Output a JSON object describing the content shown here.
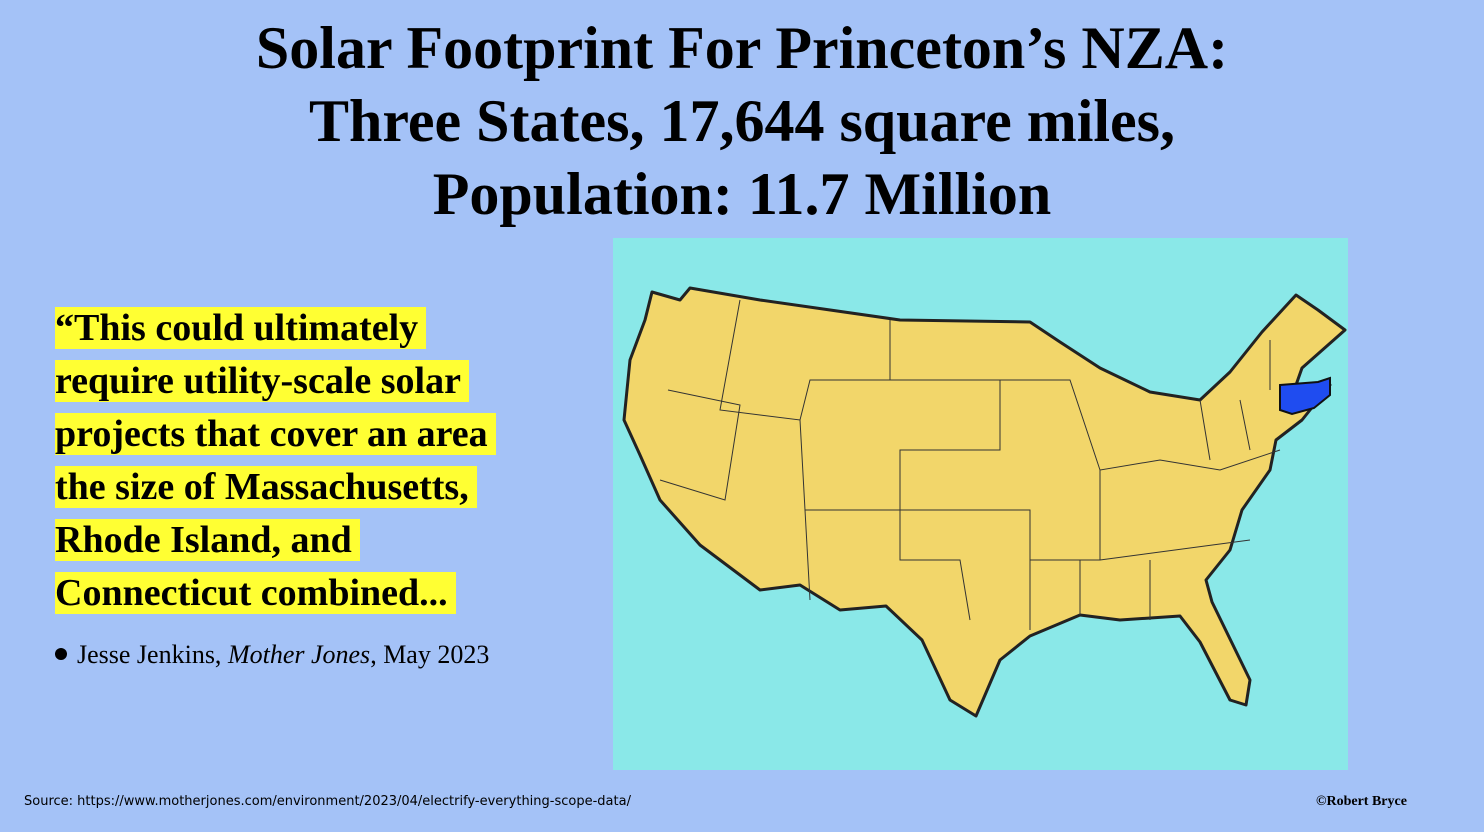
{
  "title": {
    "lines": [
      "Solar Footprint For Princeton’s NZA:",
      "Three States, 17,644 square miles,",
      "Population: 11.7 Million"
    ]
  },
  "quote": {
    "lines": [
      "“This could ultimately",
      "require utility-scale solar",
      "projects that cover an area",
      "the size of Massachusetts,",
      "Rhode Island, and",
      "Connecticut combined..."
    ],
    "attribution": {
      "author": "Jesse Jenkins,",
      "publication": "Mother Jones",
      "date": ", May 2023"
    }
  },
  "footer": {
    "source": "Source: https://www.motherjones.com/environment/2023/04/electrify-everything-scope-data/",
    "copyright": "©Robert Bryce"
  }
}
